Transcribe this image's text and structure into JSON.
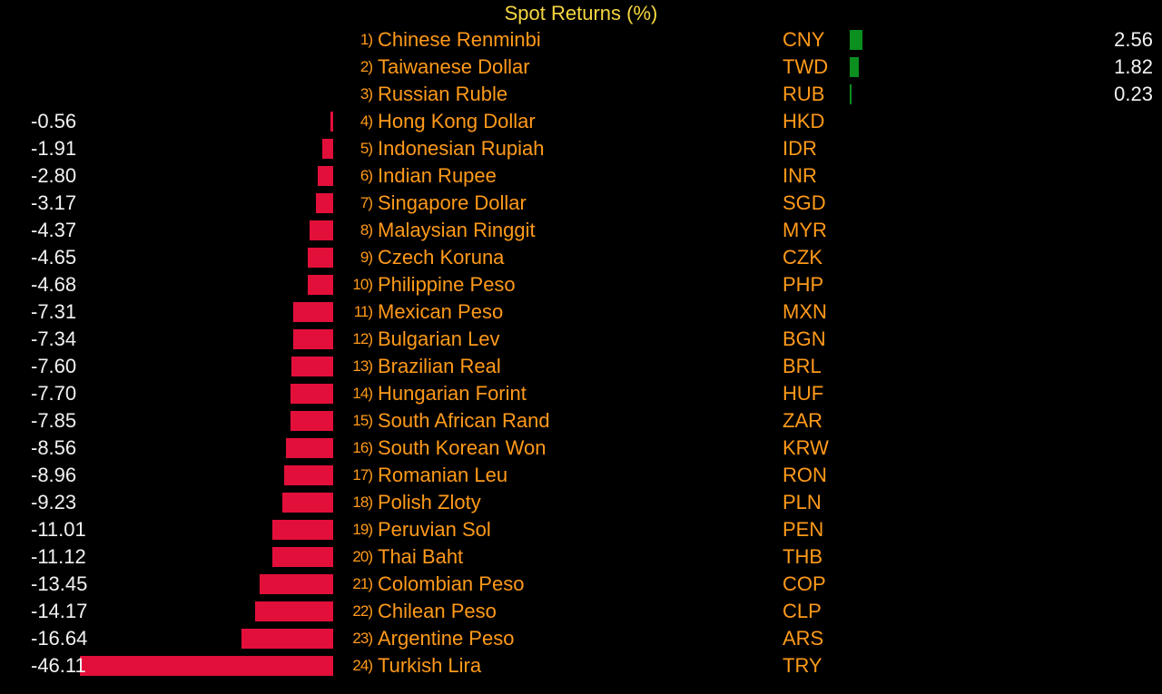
{
  "colors": {
    "negative_bar": "#e30f3b",
    "positive_bar": "#0b8f1e",
    "title": "#f5d740",
    "label": "#ff9a1a",
    "value": "#f2f2f2",
    "background": "#000000"
  },
  "chart_data": {
    "type": "bar",
    "title": "Spot Returns (%)",
    "orientation": "horizontal",
    "rows": [
      {
        "rank": "1)",
        "name": "Chinese Renminbi",
        "code": "CNY",
        "value": 2.56,
        "label": "2.56"
      },
      {
        "rank": "2)",
        "name": "Taiwanese Dollar",
        "code": "TWD",
        "value": 1.82,
        "label": "1.82"
      },
      {
        "rank": "3)",
        "name": "Russian Ruble",
        "code": "RUB",
        "value": 0.23,
        "label": "0.23"
      },
      {
        "rank": "4)",
        "name": "Hong Kong Dollar",
        "code": "HKD",
        "value": -0.56,
        "label": "-0.56"
      },
      {
        "rank": "5)",
        "name": "Indonesian Rupiah",
        "code": "IDR",
        "value": -1.91,
        "label": "-1.91"
      },
      {
        "rank": "6)",
        "name": "Indian Rupee",
        "code": "INR",
        "value": -2.8,
        "label": "-2.80"
      },
      {
        "rank": "7)",
        "name": "Singapore Dollar",
        "code": "SGD",
        "value": -3.17,
        "label": "-3.17"
      },
      {
        "rank": "8)",
        "name": "Malaysian Ringgit",
        "code": "MYR",
        "value": -4.37,
        "label": "-4.37"
      },
      {
        "rank": "9)",
        "name": "Czech Koruna",
        "code": "CZK",
        "value": -4.65,
        "label": "-4.65"
      },
      {
        "rank": "10)",
        "name": "Philippine Peso",
        "code": "PHP",
        "value": -4.68,
        "label": "-4.68"
      },
      {
        "rank": "11)",
        "name": "Mexican Peso",
        "code": "MXN",
        "value": -7.31,
        "label": "-7.31"
      },
      {
        "rank": "12)",
        "name": "Bulgarian Lev",
        "code": "BGN",
        "value": -7.34,
        "label": "-7.34"
      },
      {
        "rank": "13)",
        "name": "Brazilian Real",
        "code": "BRL",
        "value": -7.6,
        "label": "-7.60"
      },
      {
        "rank": "14)",
        "name": "Hungarian Forint",
        "code": "HUF",
        "value": -7.7,
        "label": "-7.70"
      },
      {
        "rank": "15)",
        "name": "South African Rand",
        "code": "ZAR",
        "value": -7.85,
        "label": "-7.85"
      },
      {
        "rank": "16)",
        "name": "South Korean Won",
        "code": "KRW",
        "value": -8.56,
        "label": "-8.56"
      },
      {
        "rank": "17)",
        "name": "Romanian Leu",
        "code": "RON",
        "value": -8.96,
        "label": "-8.96"
      },
      {
        "rank": "18)",
        "name": "Polish Zloty",
        "code": "PLN",
        "value": -9.23,
        "label": "-9.23"
      },
      {
        "rank": "19)",
        "name": "Peruvian Sol",
        "code": "PEN",
        "value": -11.01,
        "label": "-11.01"
      },
      {
        "rank": "20)",
        "name": "Thai Baht",
        "code": "THB",
        "value": -11.12,
        "label": "-11.12"
      },
      {
        "rank": "21)",
        "name": "Colombian Peso",
        "code": "COP",
        "value": -13.45,
        "label": "-13.45"
      },
      {
        "rank": "22)",
        "name": "Chilean Peso",
        "code": "CLP",
        "value": -14.17,
        "label": "-14.17"
      },
      {
        "rank": "23)",
        "name": "Argentine Peso",
        "code": "ARS",
        "value": -16.64,
        "label": "-16.64"
      },
      {
        "rank": "24)",
        "name": "Turkish Lira",
        "code": "TRY",
        "value": -46.11,
        "label": "-46.11"
      }
    ]
  }
}
